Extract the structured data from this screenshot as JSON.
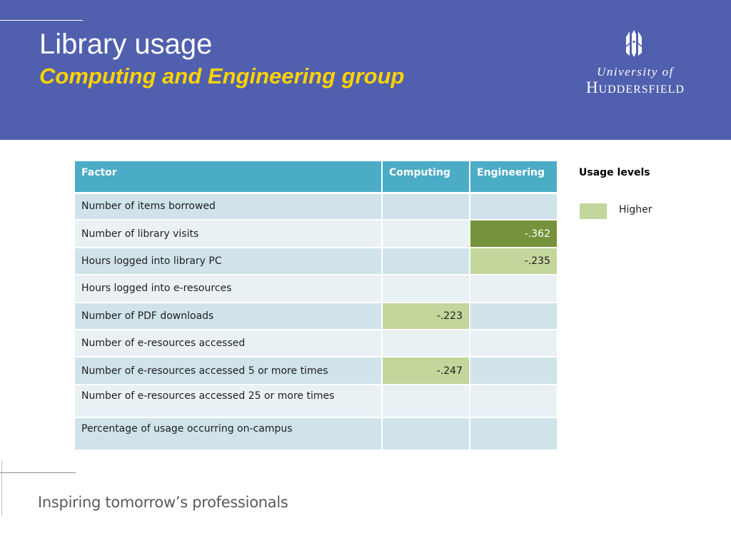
{
  "slide": {
    "title": "Library usage",
    "subtitle": "Computing and Engineering group"
  },
  "logo": {
    "line1": "University of",
    "line2": "Huddersfield",
    "icon": "university-crest-icon"
  },
  "table": {
    "headers": [
      "Factor",
      "Computing",
      "Engineering"
    ],
    "rows": [
      {
        "factor": "Number of items borrowed",
        "computing": "",
        "engineering": "",
        "computing_level": "",
        "engineering_level": ""
      },
      {
        "factor": "Number of library visits",
        "computing": "",
        "engineering": "-.362",
        "computing_level": "",
        "engineering_level": "highest"
      },
      {
        "factor": "Hours logged into library PC",
        "computing": "",
        "engineering": "-.235",
        "computing_level": "",
        "engineering_level": "higher"
      },
      {
        "factor": "Hours logged into e-resources",
        "computing": "",
        "engineering": "",
        "computing_level": "",
        "engineering_level": ""
      },
      {
        "factor": "Number of PDF downloads",
        "computing": "-.223",
        "engineering": "",
        "computing_level": "higher",
        "engineering_level": ""
      },
      {
        "factor": "Number of e-resources accessed",
        "computing": "",
        "engineering": "",
        "computing_level": "",
        "engineering_level": ""
      },
      {
        "factor": "Number of e-resources accessed 5 or more times",
        "computing": "-.247",
        "engineering": "",
        "computing_level": "higher",
        "engineering_level": ""
      },
      {
        "factor": "Number of e-resources accessed 25 or more times",
        "computing": "",
        "engineering": "",
        "computing_level": "",
        "engineering_level": ""
      },
      {
        "factor": "Percentage of usage occurring on-campus",
        "computing": "",
        "engineering": "",
        "computing_level": "",
        "engineering_level": ""
      }
    ]
  },
  "legend": {
    "title": "Usage levels",
    "items": [
      {
        "label": "Higher",
        "color": "#c3d69b"
      }
    ]
  },
  "colors": {
    "header_band": "#5060ae",
    "subtitle": "#ffd200",
    "table_header": "#4bacc6",
    "row_odd": "#d0e3ea",
    "row_even": "#e9f1f5",
    "level_higher": "#c3d69b",
    "level_highest": "#76923c"
  },
  "footer": {
    "tagline": "Inspiring tomorrow’s professionals"
  }
}
